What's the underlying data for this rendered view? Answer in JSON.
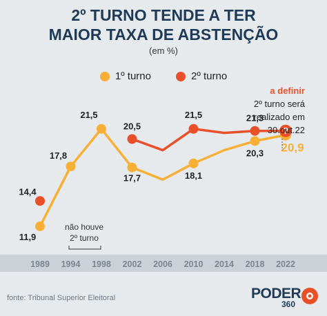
{
  "title_line1": "2º TURNO TENDE A TER",
  "title_line2": "MAIOR TAXA DE ABSTENÇÃO",
  "subtitle": "(em %)",
  "legend": {
    "first": "1º turno",
    "second": "2º turno"
  },
  "source": "fonte: Tribunal Superior Eleitoral",
  "logo": {
    "word": "PODER",
    "number": "360"
  },
  "annotation": {
    "headline": "a definir",
    "line1": "2º turno será",
    "line2": "realizado em",
    "line3": "30.out.22",
    "marker": "?"
  },
  "note": {
    "line1": "não houve",
    "line2": "2º turno"
  },
  "chart_data": {
    "type": "line",
    "title": "2º TURNO TENDE A TER MAIOR TAXA DE ABSTENÇÃO",
    "subtitle": "(em %)",
    "x": [
      "1989",
      "1994",
      "1998",
      "2002",
      "2006",
      "2010",
      "2014",
      "2018",
      "2022"
    ],
    "ylim": [
      10,
      24
    ],
    "grid": false,
    "legend_position": "top",
    "series": [
      {
        "name": "1º turno",
        "color": "#f7b035",
        "values": [
          11.9,
          17.8,
          21.5,
          17.7,
          16.5,
          18.1,
          19.4,
          20.3,
          20.9
        ],
        "labels": [
          "11,9",
          "17,8",
          "21,5",
          "17,7",
          "",
          "18,1",
          "",
          "20,3",
          "20,9"
        ]
      },
      {
        "name": "2º turno",
        "color": "#e8502a",
        "values": [
          14.4,
          null,
          null,
          20.5,
          19.4,
          21.5,
          21.1,
          21.3,
          21.3
        ],
        "labels": [
          "14,4",
          "",
          "",
          "20,5",
          "",
          "21,5",
          "",
          "21,3",
          ""
        ]
      }
    ]
  }
}
